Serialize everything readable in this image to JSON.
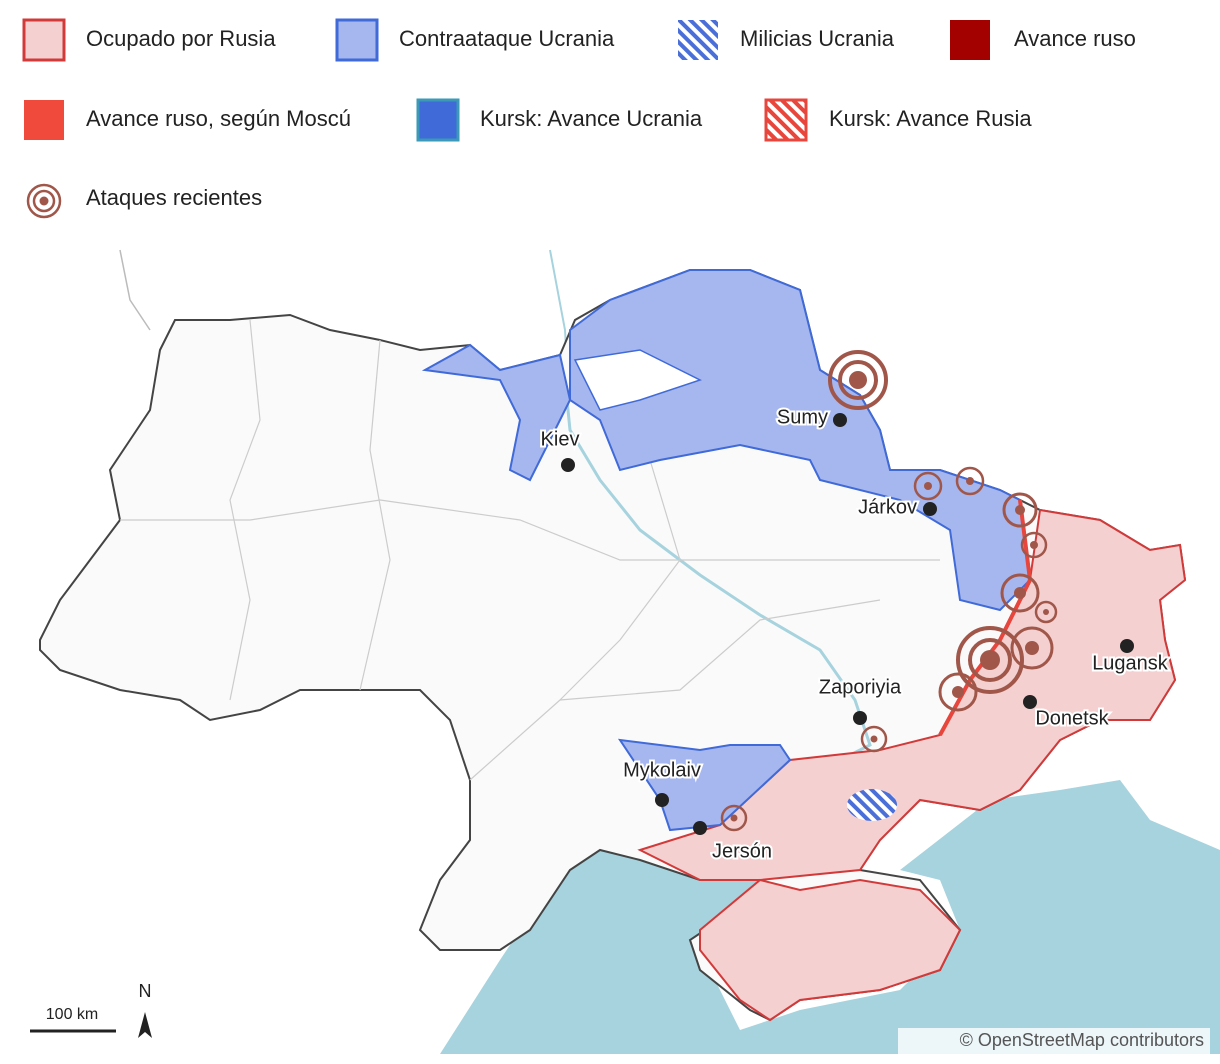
{
  "legend": [
    "Ocupado por Rusia",
    "Contraataque Ucrania",
    "Milicias Ucrania",
    "Avance ruso",
    "Avance ruso, según Moscú",
    "Kursk: Avance Ucrania",
    "Kursk: Avance Rusia",
    "Ataques recientes"
  ],
  "cities": [
    "Kiev",
    "Sumy",
    "Járkov",
    "Lugansk",
    "Donetsk",
    "Zaporiyia",
    "Mykolaiv",
    "Jersón"
  ],
  "scale_bar": "100 km",
  "north_label": "N",
  "attribution": "© OpenStreetMap contributors"
}
